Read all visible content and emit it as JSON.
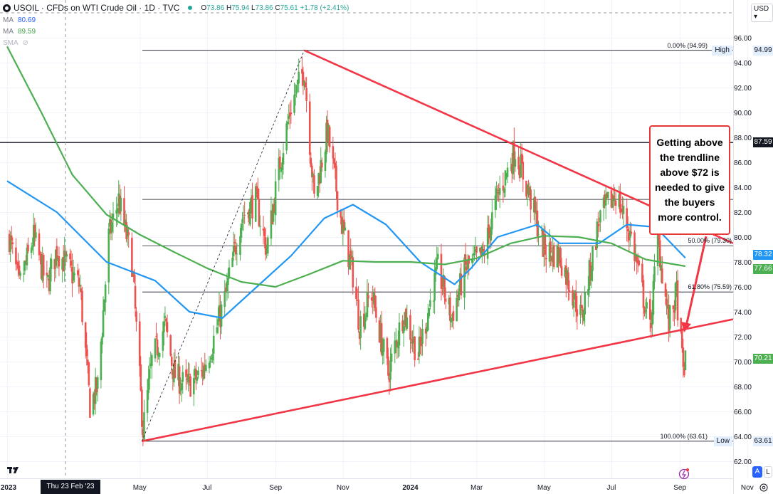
{
  "header": {
    "symbol": "USOIL",
    "title": "USOIL · CFDs on WTI Crude Oil · 1D · TVC",
    "ohlc": {
      "o_label": "O",
      "o": "73.86",
      "h_label": "H",
      "h": "75.94",
      "l_label": "L",
      "l": "73.86",
      "c_label": "C",
      "c": "75.61",
      "change": "+1.78 (+2.41%)"
    },
    "indicators": [
      {
        "name": "MA",
        "value": "80.69",
        "color": "#2196f3"
      },
      {
        "name": "MA",
        "value": "89.59",
        "color": "#4caf50"
      },
      {
        "name": "SMA",
        "value": "",
        "hidden": true
      }
    ]
  },
  "currency_selector": "USD",
  "crosshair_date": "Thu 23 Feb '23",
  "annotation": "Getting above the trendline above $72 is needed to give the buyers more control.",
  "price_tags": [
    {
      "value": "94.99",
      "label": "High",
      "bg": "#e3effd",
      "fg": "#131722"
    },
    {
      "value": "87.59",
      "label": "",
      "bg": "#131722",
      "fg": "#ffffff"
    },
    {
      "value": "78.32",
      "label": "",
      "bg": "#2196f3",
      "fg": "#ffffff"
    },
    {
      "value": "77.66",
      "label": "",
      "bg": "#4caf50",
      "fg": "#ffffff"
    },
    {
      "value": "70.21",
      "label": "",
      "bg": "#4caf50",
      "fg": "#ffffff"
    },
    {
      "value": "63.61",
      "label": "Low",
      "bg": "#e3effd",
      "fg": "#131722"
    }
  ],
  "fib_levels": [
    {
      "label": "0.00% (94.99)",
      "price": 94.99
    },
    {
      "label": "50.00% (79.30)",
      "price": 79.3
    },
    {
      "label": "61.80% (75.59)",
      "price": 75.59
    },
    {
      "label": "100.00% (63.61)",
      "price": 63.61
    }
  ],
  "axis_buttons": {
    "auto": "A",
    "log": "L"
  },
  "colors": {
    "up": "#4caf50",
    "down": "#ef5350",
    "ma_fast": "#2196f3",
    "ma_slow": "#4caf50",
    "trendline": "#f23645",
    "annotation_border": "#e53935"
  },
  "chart_data": {
    "type": "candlestick",
    "title": "USOIL · CFDs on WTI Crude Oil · 1D · TVC",
    "x_tick_labels": [
      "2023",
      "May",
      "Jul",
      "Sep",
      "Nov",
      "2024",
      "Mar",
      "May",
      "Jul",
      "Sep",
      "Nov"
    ],
    "x_tick_dates": [
      "2023-01-01",
      "2023-05-01",
      "2023-07-01",
      "2023-09-01",
      "2023-11-01",
      "2024-01-01",
      "2024-03-01",
      "2024-05-01",
      "2024-07-01",
      "2024-09-01",
      "2024-11-01"
    ],
    "y_tick_labels": [
      "62.00",
      "64.00",
      "66.00",
      "68.00",
      "70.00",
      "72.00",
      "74.00",
      "76.00",
      "78.00",
      "80.00",
      "82.00",
      "84.00",
      "86.00",
      "88.00",
      "90.00",
      "92.00",
      "94.00",
      "96.00"
    ],
    "ylim": [
      61.2,
      97
    ],
    "xlim": [
      "2023-01-01",
      "2024-11-20"
    ],
    "grid": true,
    "scale": "linear",
    "approx_close_path": [
      [
        "2023-01-03",
        80
      ],
      [
        "2023-01-12",
        76
      ],
      [
        "2023-01-25",
        80
      ],
      [
        "2023-02-06",
        76
      ],
      [
        "2023-02-15",
        79
      ],
      [
        "2023-03-01",
        77
      ],
      [
        "2023-03-08",
        76
      ],
      [
        "2023-03-17",
        66.5
      ],
      [
        "2023-03-24",
        68
      ],
      [
        "2023-04-03",
        80
      ],
      [
        "2023-04-12",
        83
      ],
      [
        "2023-04-24",
        78
      ],
      [
        "2023-05-04",
        64.5
      ],
      [
        "2023-05-12",
        70
      ],
      [
        "2023-05-24",
        73
      ],
      [
        "2023-06-01",
        69
      ],
      [
        "2023-06-12",
        68
      ],
      [
        "2023-06-26",
        69
      ],
      [
        "2023-07-06",
        71.5
      ],
      [
        "2023-07-17",
        75
      ],
      [
        "2023-08-01",
        81.5
      ],
      [
        "2023-08-14",
        83
      ],
      [
        "2023-08-24",
        79
      ],
      [
        "2023-09-05",
        86
      ],
      [
        "2023-09-15",
        90.5
      ],
      [
        "2023-09-27",
        93.5
      ],
      [
        "2023-10-06",
        83
      ],
      [
        "2023-10-18",
        88.5
      ],
      [
        "2023-10-31",
        81
      ],
      [
        "2023-11-10",
        77
      ],
      [
        "2023-11-16",
        73
      ],
      [
        "2023-11-27",
        75.5
      ],
      [
        "2023-12-12",
        69
      ],
      [
        "2023-12-26",
        74
      ],
      [
        "2024-01-08",
        70.5
      ],
      [
        "2024-01-26",
        77.5
      ],
      [
        "2024-02-07",
        73.5
      ],
      [
        "2024-02-20",
        77.5
      ],
      [
        "2024-03-07",
        78.5
      ],
      [
        "2024-03-19",
        83
      ],
      [
        "2024-04-05",
        87
      ],
      [
        "2024-04-19",
        83
      ],
      [
        "2024-05-01",
        79
      ],
      [
        "2024-05-15",
        78.5
      ],
      [
        "2024-06-04",
        73.5
      ],
      [
        "2024-06-20",
        81.5
      ],
      [
        "2024-07-05",
        83.5
      ],
      [
        "2024-07-19",
        80
      ],
      [
        "2024-08-05",
        72.5
      ],
      [
        "2024-08-12",
        80
      ],
      [
        "2024-08-22",
        73
      ],
      [
        "2024-08-29",
        75.5
      ],
      [
        "2024-09-04",
        69.2
      ],
      [
        "2024-09-06",
        70.21
      ]
    ],
    "series": [
      {
        "name": "MA",
        "value_label": "80.69",
        "color": "#2196f3",
        "points": [
          [
            "2023-01-01",
            84.5
          ],
          [
            "2023-02-15",
            82
          ],
          [
            "2023-04-01",
            78
          ],
          [
            "2023-05-15",
            76.5
          ],
          [
            "2023-06-15",
            74
          ],
          [
            "2023-07-15",
            73.5
          ],
          [
            "2023-08-15",
            76
          ],
          [
            "2023-09-15",
            78.5
          ],
          [
            "2023-10-15",
            81.5
          ],
          [
            "2023-11-10",
            82.6
          ],
          [
            "2023-12-10",
            81
          ],
          [
            "2024-01-10",
            78
          ],
          [
            "2024-02-10",
            76.2
          ],
          [
            "2024-02-25",
            77.5
          ],
          [
            "2024-03-20",
            80
          ],
          [
            "2024-04-25",
            81
          ],
          [
            "2024-05-15",
            79.5
          ],
          [
            "2024-06-20",
            79.5
          ],
          [
            "2024-07-15",
            81
          ],
          [
            "2024-08-10",
            80.8
          ],
          [
            "2024-09-06",
            78.32
          ]
        ]
      },
      {
        "name": "MA",
        "value_label": "89.59",
        "color": "#4caf50",
        "points": [
          [
            "2023-01-01",
            95.3
          ],
          [
            "2023-02-01",
            90
          ],
          [
            "2023-03-01",
            85
          ],
          [
            "2023-04-01",
            81.8
          ],
          [
            "2023-05-01",
            80.2
          ],
          [
            "2023-06-01",
            78.8
          ],
          [
            "2023-07-01",
            77.5
          ],
          [
            "2023-08-01",
            76.4
          ],
          [
            "2023-09-01",
            76
          ],
          [
            "2023-10-01",
            77
          ],
          [
            "2023-11-01",
            78.1
          ],
          [
            "2023-12-01",
            78
          ],
          [
            "2024-01-01",
            78
          ],
          [
            "2024-02-01",
            77.8
          ],
          [
            "2024-03-01",
            78.3
          ],
          [
            "2024-04-01",
            79.5
          ],
          [
            "2024-05-01",
            80.1
          ],
          [
            "2024-06-01",
            80
          ],
          [
            "2024-07-01",
            79.5
          ],
          [
            "2024-08-01",
            78.2
          ],
          [
            "2024-09-06",
            77.66
          ]
        ]
      }
    ],
    "horizontal_lines": [
      {
        "price": 87.59,
        "label": "87.59"
      },
      {
        "price": 83.02,
        "label": ""
      }
    ],
    "trendlines": [
      {
        "from": [
          "2023-09-27",
          94.99
        ],
        "to": [
          "2024-11-20",
          79.5
        ]
      },
      {
        "from": [
          "2023-05-03",
          63.61
        ],
        "to": [
          "2024-11-20",
          73.4
        ]
      },
      {
        "from": [
          "2023-05-03",
          63.61
        ],
        "to": [
          "2023-09-27",
          94.99
        ],
        "dashed": true
      }
    ]
  }
}
